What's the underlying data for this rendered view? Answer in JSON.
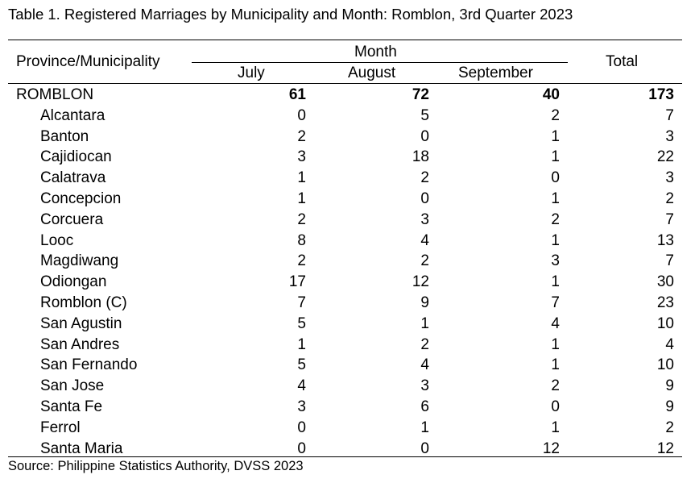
{
  "title": "Table 1. Registered Marriages by Municipality and Month: Romblon, 3rd Quarter 2023",
  "headers": {
    "province": "Province/Municipality",
    "month": "Month",
    "july": "July",
    "august": "August",
    "september": "September",
    "total": "Total"
  },
  "rows": [
    {
      "name": "ROMBLON",
      "july": "61",
      "august": "72",
      "september": "40",
      "total": "173"
    },
    {
      "name": "Alcantara",
      "july": "0",
      "august": "5",
      "september": "2",
      "total": "7"
    },
    {
      "name": "Banton",
      "july": "2",
      "august": "0",
      "september": "1",
      "total": "3"
    },
    {
      "name": "Cajidiocan",
      "july": "3",
      "august": "18",
      "september": "1",
      "total": "22"
    },
    {
      "name": "Calatrava",
      "july": "1",
      "august": "2",
      "september": "0",
      "total": "3"
    },
    {
      "name": "Concepcion",
      "july": "1",
      "august": "0",
      "september": "1",
      "total": "2"
    },
    {
      "name": "Corcuera",
      "july": "2",
      "august": "3",
      "september": "2",
      "total": "7"
    },
    {
      "name": "Looc",
      "july": "8",
      "august": "4",
      "september": "1",
      "total": "13"
    },
    {
      "name": "Magdiwang",
      "july": "2",
      "august": "2",
      "september": "3",
      "total": "7"
    },
    {
      "name": "Odiongan",
      "july": "17",
      "august": "12",
      "september": "1",
      "total": "30"
    },
    {
      "name": "Romblon (C)",
      "july": "7",
      "august": "9",
      "september": "7",
      "total": "23"
    },
    {
      "name": "San Agustin",
      "july": "5",
      "august": "1",
      "september": "4",
      "total": "10"
    },
    {
      "name": "San Andres",
      "july": "1",
      "august": "2",
      "september": "1",
      "total": "4"
    },
    {
      "name": "San Fernando",
      "july": "5",
      "august": "4",
      "september": "1",
      "total": "10"
    },
    {
      "name": "San Jose",
      "july": "4",
      "august": "3",
      "september": "2",
      "total": "9"
    },
    {
      "name": "Santa Fe",
      "july": "3",
      "august": "6",
      "september": "0",
      "total": "9"
    },
    {
      "name": "Ferrol",
      "july": "0",
      "august": "1",
      "september": "1",
      "total": "2"
    },
    {
      "name": "Santa Maria",
      "july": "0",
      "august": "0",
      "september": "12",
      "total": "12"
    }
  ],
  "source": "Source: Philippine Statistics Authority, DVSS 2023"
}
